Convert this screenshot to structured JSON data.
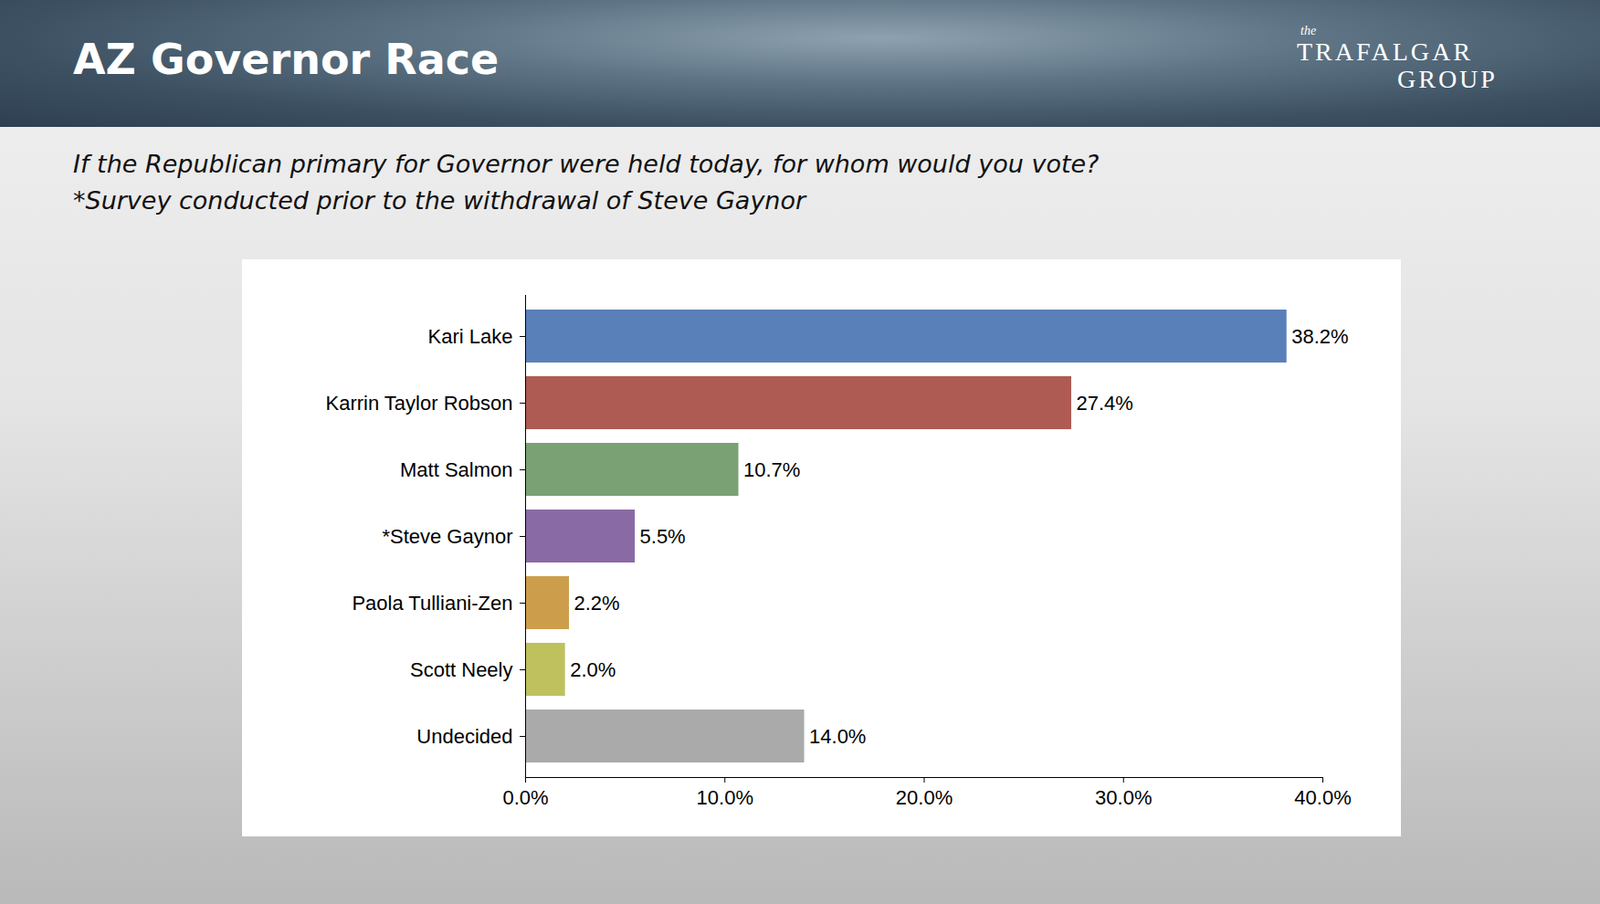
{
  "chart_data": {
    "type": "bar",
    "orientation": "horizontal",
    "title": "AZ Governor Race",
    "subtitle": [
      "If the Republican primary for Governor were held today, for whom would you vote?",
      "*Survey conducted prior to the withdrawal of Steve Gaynor"
    ],
    "logo": [
      "the",
      "TRAFAL",
      "GAR",
      "GROUP"
    ],
    "categories": [
      "Kari Lake",
      "Karrin Taylor Robson",
      "Matt Salmon",
      "*Steve Gaynor",
      "Paola Tulliani-Zen",
      "Scott Neely",
      "Undecided"
    ],
    "values": [
      38.2,
      27.4,
      10.7,
      5.5,
      2.2,
      2.0,
      14.0
    ],
    "value_labels": [
      "38.2%",
      "27.4%",
      "10.7%",
      "5.5%",
      "2.2%",
      "2.0%",
      "14.0%"
    ],
    "colors": [
      "#5a80b9",
      "#ae5b53",
      "#7aa173",
      "#8a6aa4",
      "#cc9e4c",
      "#bec15e",
      "#aaaaaa"
    ],
    "data_labels": true,
    "grid": false,
    "xlim": [
      0,
      40
    ],
    "xticks": [
      {
        "value": 0,
        "label": "0.0%"
      },
      {
        "value": 10,
        "label": "10.0%"
      },
      {
        "value": 20,
        "label": "20.0%"
      },
      {
        "value": 30,
        "label": "30.0%"
      },
      {
        "value": 40,
        "label": "40.0%"
      }
    ]
  }
}
